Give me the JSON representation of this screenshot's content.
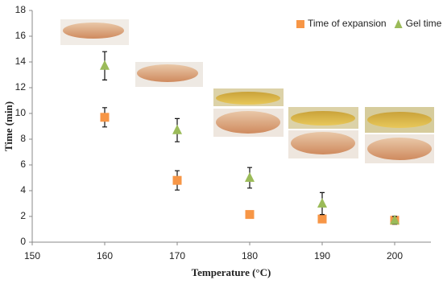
{
  "chart_data": {
    "type": "scatter",
    "x_label": "Temperature (°C)",
    "y_label": "Time (min)",
    "x": [
      160,
      170,
      180,
      190,
      200
    ],
    "series": [
      {
        "name": "Time of expansion",
        "color": "#f79646",
        "marker": "square",
        "values": [
          9.7,
          4.8,
          2.15,
          1.8,
          1.7
        ],
        "errors": [
          0.75,
          0.75,
          null,
          null,
          null
        ]
      },
      {
        "name": "Gel time",
        "color": "#9bbb59",
        "marker": "triangle",
        "values": [
          13.7,
          8.7,
          5.0,
          3.0,
          1.7
        ],
        "errors": [
          1.1,
          0.9,
          0.8,
          0.85,
          0.3
        ]
      }
    ],
    "xlim": [
      150,
      205
    ],
    "xticks": [
      150,
      160,
      170,
      180,
      190,
      200
    ],
    "ylim": [
      0,
      18
    ],
    "yticks": [
      0,
      2,
      4,
      6,
      8,
      10,
      12,
      14,
      16,
      18
    ],
    "legend": "top-right"
  }
}
